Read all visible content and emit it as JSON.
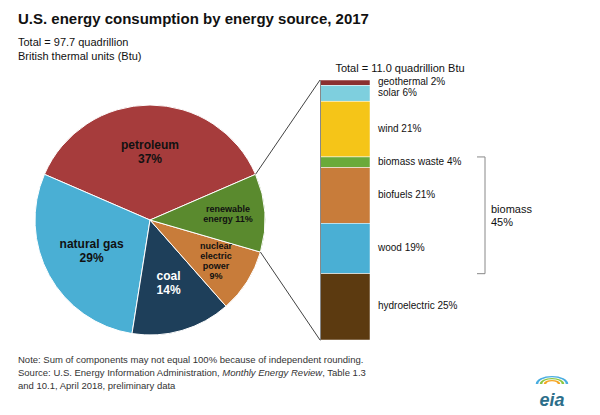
{
  "chart_data": [
    {
      "type": "pie",
      "title": "U.S. energy consumption by energy source, 2017",
      "subtitle": [
        "Total = 97.7 quadrillion",
        "British thermal units (Btu)"
      ],
      "values": [
        37,
        29,
        14,
        9,
        11
      ],
      "value_labels": [
        "petroleum\n37%",
        "natural gas\n29%",
        "coal\n14%",
        "nuclear\nelectric\npower\n9%",
        "renewable\nenergy 11%"
      ],
      "colors": [
        "#a63c3c",
        "#4aafd4",
        "#1e3f5a",
        "#c87c3a",
        "#5a8a2e"
      ],
      "data_labels": true,
      "annotations": [
        "Note: Sum of components may not equal 100% because of independent rounding.",
        [
          "Source: U.S. Energy Information Administration, ",
          "Monthly Energy Review",
          ", Table 1.3"
        ],
        "and 10.1, April 2018, preliminary data",
        "eia"
      ]
    },
    {
      "type": "bar",
      "stacked": true,
      "title": "Total = 11.0 quadrillion Btu",
      "categories": [
        null
      ],
      "series": [
        {
          "values": [
            2
          ],
          "value_labels": [
            "geothermal 2%"
          ],
          "color": "#8b3030"
        },
        {
          "values": [
            6
          ],
          "value_labels": [
            "solar 6%"
          ],
          "color": "#7ecfde"
        },
        {
          "values": [
            21
          ],
          "value_labels": [
            "wind 21%"
          ],
          "color": "#f5c518"
        },
        {
          "values": [
            4
          ],
          "value_labels": [
            "biomass waste 4%"
          ],
          "color": "#6aaa3a"
        },
        {
          "values": [
            21
          ],
          "value_labels": [
            "biofuels 21%"
          ],
          "color": "#c87c3a"
        },
        {
          "values": [
            19
          ],
          "value_labels": [
            "wood 19%"
          ],
          "color": "#4aafd4"
        },
        {
          "values": [
            25
          ],
          "value_labels": [
            "hydroelectric 25%"
          ],
          "color": "#5c3a10"
        }
      ],
      "ylim": [
        0,
        98
      ],
      "tick_labels": false,
      "data_labels": true,
      "annotations": [
        {
          "label": "biomass\n45%",
          "value": 45
        }
      ]
    }
  ]
}
